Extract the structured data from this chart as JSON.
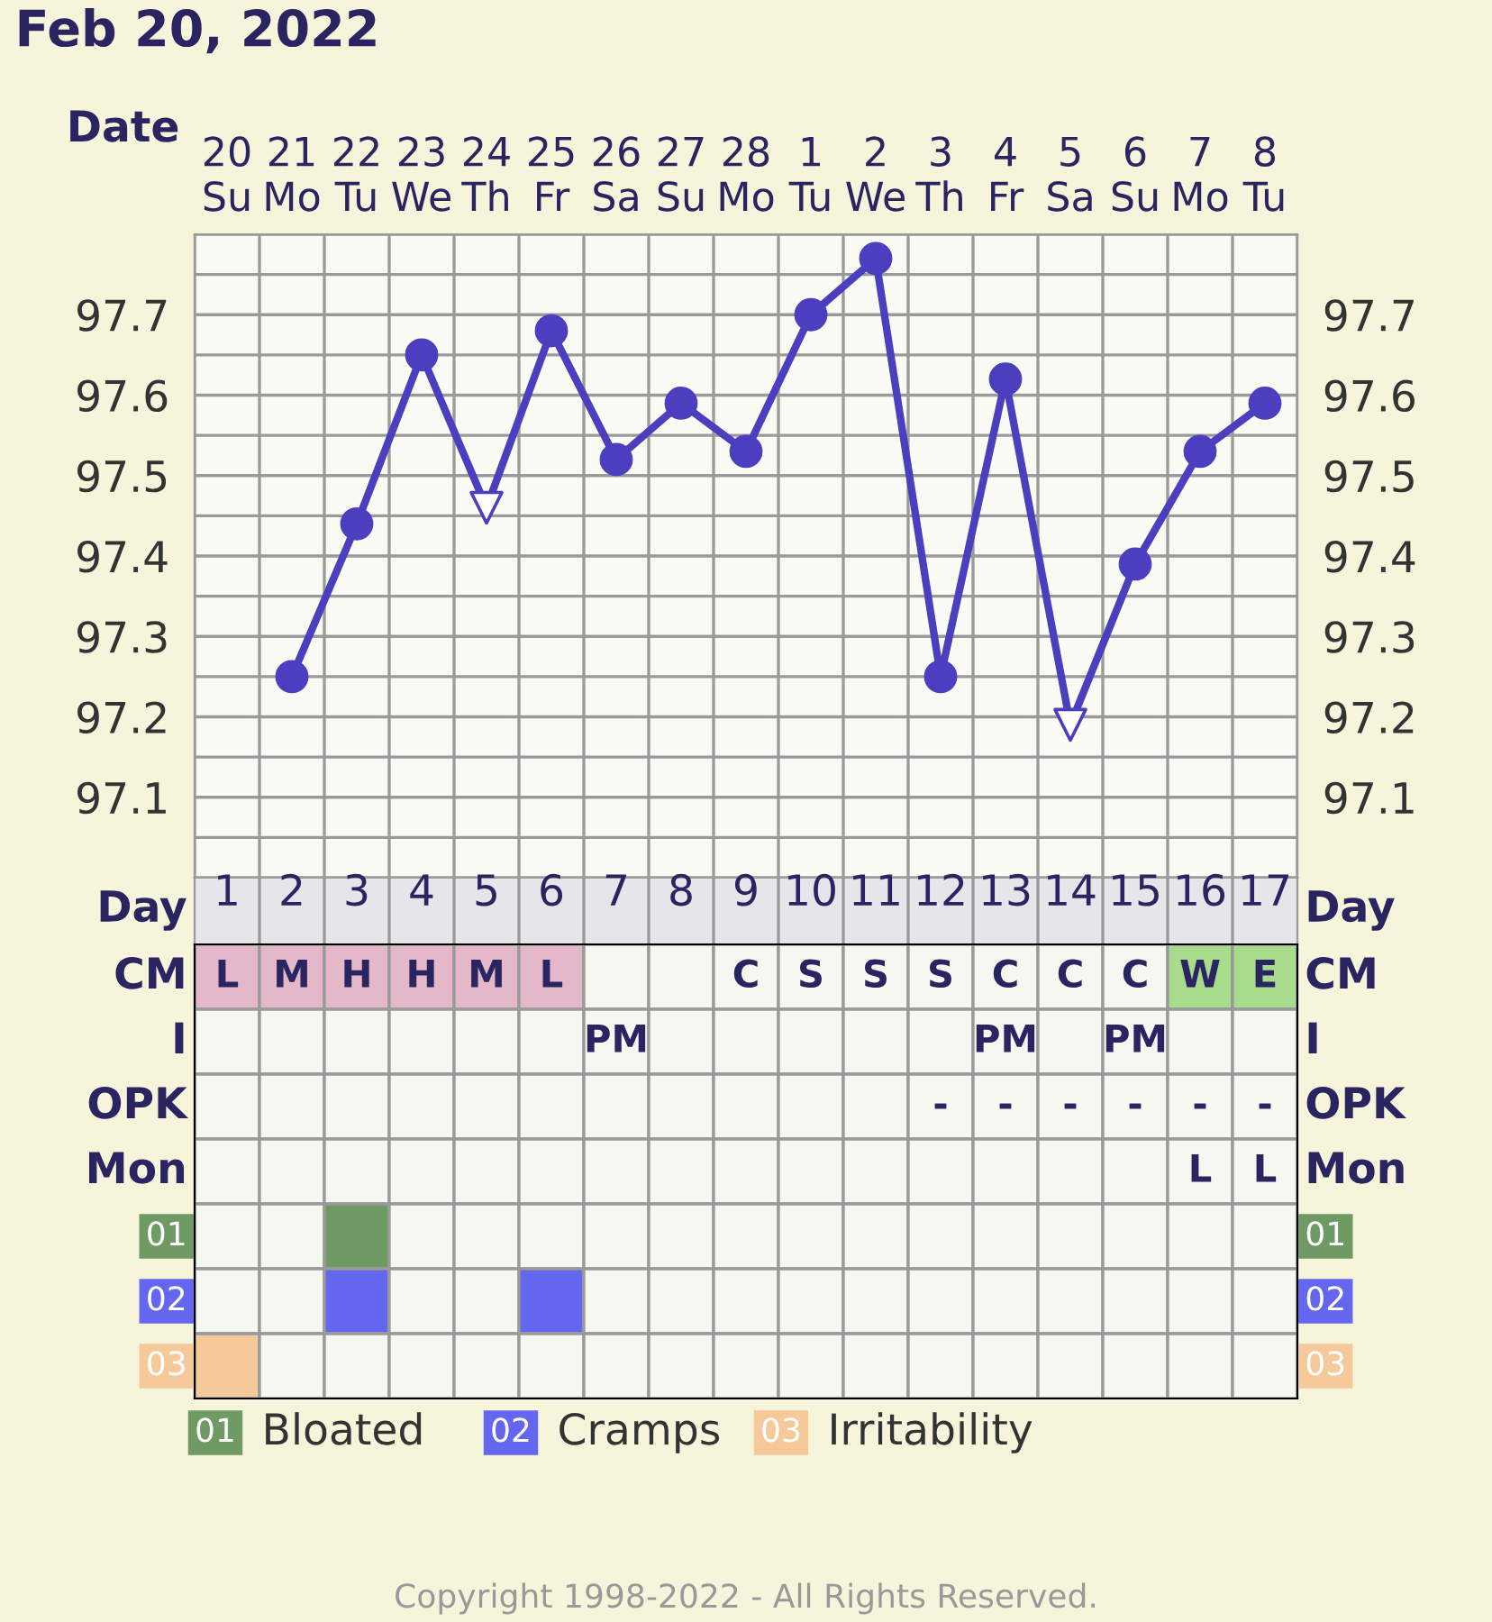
{
  "chart_data": [
    {
      "type": "line",
      "title": "Feb 20, 2022",
      "xlabel": "Date",
      "categories": [
        "20\nSu",
        "21\nMo",
        "22\nTu",
        "23\nWe",
        "24\nTh",
        "25\nFr",
        "26\nSa",
        "27\nSu",
        "28\nMo",
        "1\nTu",
        "2\nWe",
        "3\nTh",
        "4\nFr",
        "5\nSa",
        "6\nSu",
        "7\nMo",
        "8\nTu"
      ],
      "series": [
        {
          "type": "line",
          "color": "#4b3fbf",
          "marker": "none",
          "values": [
            null,
            97.25,
            97.44,
            97.65,
            97.46,
            97.68,
            97.52,
            97.59,
            97.53,
            97.7,
            97.77,
            97.25,
            97.62,
            97.19,
            97.39,
            97.53,
            97.59
          ]
        },
        {
          "type": "scatter",
          "color": "#4b3fbf",
          "marker": "circle",
          "values": [
            null,
            97.25,
            97.44,
            97.65,
            null,
            97.68,
            97.52,
            97.59,
            97.53,
            97.7,
            97.77,
            97.25,
            97.62,
            null,
            97.39,
            97.53,
            97.59
          ]
        },
        {
          "type": "scatter",
          "color": "#4b3fbf",
          "marker": "triangle",
          "values": [
            null,
            null,
            null,
            null,
            97.46,
            null,
            null,
            null,
            null,
            null,
            null,
            null,
            null,
            97.19,
            null,
            null,
            null
          ]
        }
      ],
      "ylim": [
        97.0,
        97.8
      ],
      "yticks": [
        97.1,
        97.2,
        97.3,
        97.4,
        97.5,
        97.6,
        97.7
      ],
      "y2lim": [
        97.0,
        97.8
      ],
      "y2ticks": [
        97.1,
        97.2,
        97.3,
        97.4,
        97.5,
        97.6,
        97.7
      ],
      "grid": true,
      "line_style": "solid"
    },
    {
      "type": "heatmap",
      "xlabel": "Day",
      "categories": [
        "1",
        "2",
        "3",
        "4",
        "5",
        "6",
        "7",
        "8",
        "9",
        "10",
        "11",
        "12",
        "13",
        "14",
        "15",
        "16",
        "17"
      ],
      "y_categories": [
        "CM",
        "I",
        "OPK",
        "Mon",
        "01",
        "02",
        "03"
      ],
      "y2_categories": [
        "CM",
        "I",
        "OPK",
        "Mon",
        "01",
        "02",
        "03"
      ],
      "cells": [
        [
          null,
          null,
          null,
          null,
          null,
          null,
          null,
          null,
          null,
          null,
          null,
          null,
          null,
          null,
          null,
          null,
          null
        ],
        [
          null,
          null,
          null,
          null,
          null,
          null,
          null,
          null,
          null,
          null,
          null,
          null,
          null,
          null,
          null,
          null,
          null
        ],
        [
          null,
          null,
          null,
          null,
          null,
          null,
          null,
          null,
          null,
          null,
          null,
          null,
          null,
          null,
          null,
          null,
          null
        ],
        [
          null,
          null,
          null,
          null,
          null,
          null,
          null,
          null,
          null,
          null,
          null,
          null,
          null,
          null,
          null,
          null,
          null
        ],
        [
          null,
          null,
          null,
          null,
          null,
          null,
          null,
          null,
          null,
          null,
          null,
          null,
          null,
          null,
          null,
          null,
          null
        ],
        [
          null,
          null,
          null,
          null,
          null,
          null,
          null,
          null,
          null,
          null,
          null,
          null,
          null,
          null,
          null,
          null,
          null
        ],
        [
          null,
          null,
          null,
          null,
          null,
          null,
          null,
          null,
          null,
          null,
          null,
          null,
          null,
          null,
          null,
          null,
          null
        ]
      ],
      "cell_labels": [
        [
          "L",
          "M",
          "H",
          "H",
          "M",
          "L",
          null,
          null,
          "C",
          "S",
          "S",
          "S",
          "C",
          "C",
          "C",
          "W",
          "E"
        ],
        [
          null,
          null,
          null,
          null,
          null,
          null,
          "PM",
          null,
          null,
          null,
          null,
          null,
          "PM",
          null,
          "PM",
          null,
          null
        ],
        [
          null,
          null,
          null,
          null,
          null,
          null,
          null,
          null,
          null,
          null,
          null,
          "-",
          "-",
          "-",
          "-",
          "-",
          "-"
        ],
        [
          null,
          null,
          null,
          null,
          null,
          null,
          null,
          null,
          null,
          null,
          null,
          null,
          null,
          null,
          null,
          "L",
          "L"
        ],
        [
          null,
          null,
          null,
          null,
          null,
          null,
          null,
          null,
          null,
          null,
          null,
          null,
          null,
          null,
          null,
          null,
          null
        ],
        [
          null,
          null,
          null,
          null,
          null,
          null,
          null,
          null,
          null,
          null,
          null,
          null,
          null,
          null,
          null,
          null,
          null
        ],
        [
          null,
          null,
          null,
          null,
          null,
          null,
          null,
          null,
          null,
          null,
          null,
          null,
          null,
          null,
          null,
          null,
          null
        ]
      ],
      "colors": [
        [
          "#e4b8c8",
          "#e4b8c8",
          "#e4b8c8",
          "#e4b8c8",
          "#e4b8c8",
          "#e4b8c8",
          null,
          null,
          null,
          null,
          null,
          null,
          null,
          null,
          null,
          "#a8dc8c",
          "#a8dc8c"
        ],
        [
          null,
          null,
          null,
          null,
          null,
          null,
          null,
          null,
          null,
          null,
          null,
          null,
          null,
          null,
          null,
          null,
          null
        ],
        [
          null,
          null,
          null,
          null,
          null,
          null,
          null,
          null,
          null,
          null,
          null,
          null,
          null,
          null,
          null,
          null,
          null
        ],
        [
          null,
          null,
          null,
          null,
          null,
          null,
          null,
          null,
          null,
          null,
          null,
          null,
          null,
          null,
          null,
          null,
          null
        ],
        [
          null,
          null,
          "#6f9a64",
          null,
          null,
          null,
          null,
          null,
          null,
          null,
          null,
          null,
          null,
          null,
          null,
          null,
          null
        ],
        [
          null,
          null,
          "#6466f0",
          null,
          null,
          "#6466f0",
          null,
          null,
          null,
          null,
          null,
          null,
          null,
          null,
          null,
          null,
          null
        ],
        [
          "#f5c99a",
          null,
          null,
          null,
          null,
          null,
          null,
          null,
          null,
          null,
          null,
          null,
          null,
          null,
          null,
          null,
          null
        ]
      ],
      "annotations": [
        "Bloated",
        "Cramps",
        "Irritability",
        "Copyright 1998-2022 - All Rights Reserved."
      ]
    }
  ]
}
